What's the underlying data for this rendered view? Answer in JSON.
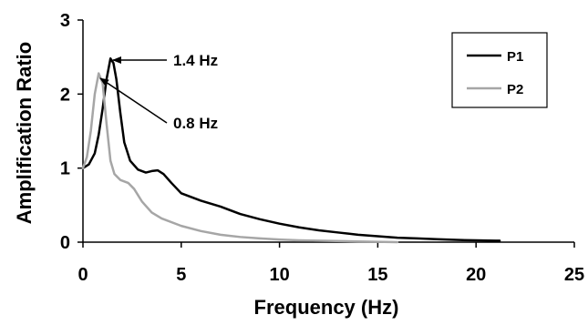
{
  "chart_data": {
    "type": "line",
    "title": "",
    "xlabel": "Frequency (Hz)",
    "ylabel": "Amplification Ratio",
    "xlim": [
      0,
      25
    ],
    "ylim": [
      0,
      3
    ],
    "x_ticks": [
      "0",
      "5",
      "10",
      "15",
      "20",
      "25"
    ],
    "y_ticks": [
      "0",
      "1",
      "2",
      "3"
    ],
    "grid": false,
    "legend_position": "top-right",
    "series": [
      {
        "name": "P1",
        "color": "#000000",
        "points": [
          [
            0,
            1.0
          ],
          [
            0.3,
            1.05
          ],
          [
            0.6,
            1.2
          ],
          [
            0.8,
            1.45
          ],
          [
            1.0,
            1.8
          ],
          [
            1.2,
            2.2
          ],
          [
            1.4,
            2.48
          ],
          [
            1.55,
            2.42
          ],
          [
            1.7,
            2.2
          ],
          [
            1.9,
            1.75
          ],
          [
            2.1,
            1.35
          ],
          [
            2.4,
            1.1
          ],
          [
            2.8,
            0.98
          ],
          [
            3.2,
            0.94
          ],
          [
            3.5,
            0.96
          ],
          [
            3.8,
            0.97
          ],
          [
            4.1,
            0.92
          ],
          [
            4.5,
            0.8
          ],
          [
            5,
            0.66
          ],
          [
            6,
            0.56
          ],
          [
            7,
            0.48
          ],
          [
            8,
            0.38
          ],
          [
            9,
            0.31
          ],
          [
            10,
            0.25
          ],
          [
            11,
            0.2
          ],
          [
            12,
            0.16
          ],
          [
            13,
            0.13
          ],
          [
            14,
            0.1
          ],
          [
            15,
            0.08
          ],
          [
            16,
            0.06
          ],
          [
            17,
            0.05
          ],
          [
            18,
            0.04
          ],
          [
            19,
            0.03
          ],
          [
            20,
            0.025
          ],
          [
            21,
            0.02
          ],
          [
            21.2,
            0.02
          ]
        ]
      },
      {
        "name": "P2",
        "color": "#a6a6a6",
        "points": [
          [
            0,
            1.0
          ],
          [
            0.2,
            1.15
          ],
          [
            0.4,
            1.5
          ],
          [
            0.6,
            2.0
          ],
          [
            0.8,
            2.28
          ],
          [
            1.0,
            2.15
          ],
          [
            1.2,
            1.6
          ],
          [
            1.4,
            1.1
          ],
          [
            1.6,
            0.92
          ],
          [
            1.9,
            0.84
          ],
          [
            2.3,
            0.8
          ],
          [
            2.6,
            0.72
          ],
          [
            3,
            0.55
          ],
          [
            3.5,
            0.4
          ],
          [
            4,
            0.32
          ],
          [
            5,
            0.22
          ],
          [
            6,
            0.15
          ],
          [
            7,
            0.1
          ],
          [
            8,
            0.07
          ],
          [
            9,
            0.05
          ],
          [
            10,
            0.035
          ],
          [
            11,
            0.025
          ],
          [
            12,
            0.02
          ],
          [
            14,
            0.01
          ],
          [
            16,
            0.0
          ]
        ]
      }
    ],
    "annotations": [
      {
        "text": "1.4 Hz",
        "x": 1.4,
        "y": 2.48
      },
      {
        "text": "0.8 Hz",
        "x": 0.8,
        "y": 2.28
      }
    ]
  }
}
